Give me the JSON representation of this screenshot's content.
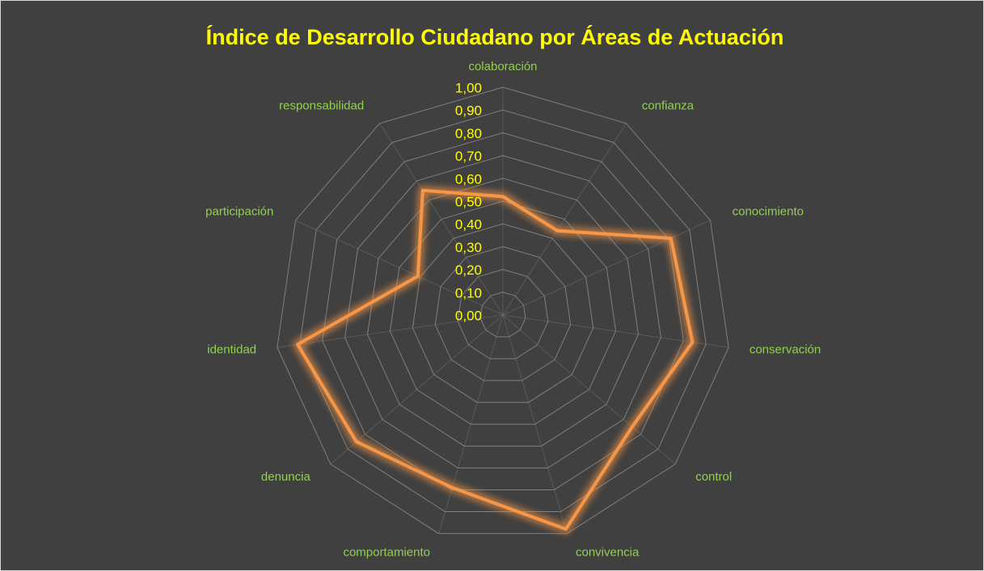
{
  "chart_data": {
    "type": "radar",
    "title": "Índice de Desarrollo Ciudadano por Áreas de Actuación",
    "categories": [
      "colaboración",
      "confianza",
      "conocimiento",
      "conservación",
      "control",
      "convivencia",
      "comportamiento",
      "denuncia",
      "identidad",
      "participación",
      "responsabilidad"
    ],
    "series": [
      {
        "color": "#f79646",
        "values": [
          0.52,
          0.44,
          0.81,
          0.84,
          0.75,
          0.98,
          0.79,
          0.85,
          0.91,
          0.41,
          0.65
        ]
      }
    ],
    "ylim": [
      0,
      1
    ],
    "yticks": [
      {
        "value": 0,
        "label": "0,00"
      },
      {
        "value": 0.1,
        "label": "0,10"
      },
      {
        "value": 0.2,
        "label": "0,20"
      },
      {
        "value": 0.3,
        "label": "0,30"
      },
      {
        "value": 0.4,
        "label": "0,40"
      },
      {
        "value": 0.5,
        "label": "0,50"
      },
      {
        "value": 0.6,
        "label": "0,60"
      },
      {
        "value": 0.7,
        "label": "0,70"
      },
      {
        "value": 0.8,
        "label": "0,80"
      },
      {
        "value": 0.9,
        "label": "0,90"
      },
      {
        "value": 1,
        "label": "1,00"
      }
    ],
    "grid": true
  }
}
